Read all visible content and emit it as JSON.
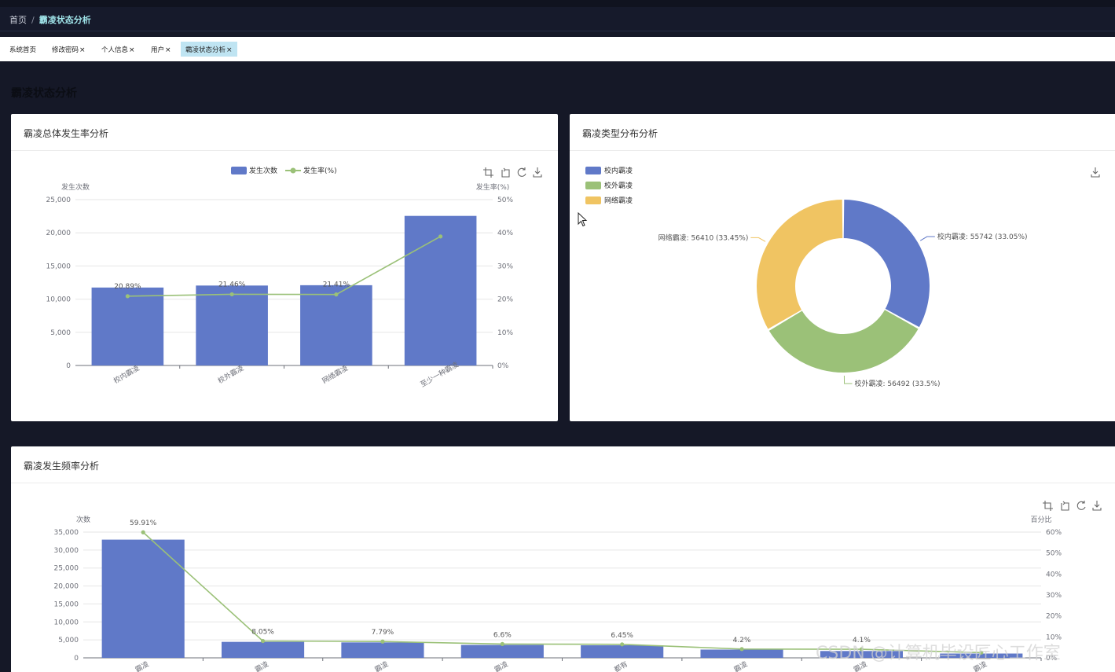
{
  "breadcrumb": {
    "home": "首页",
    "separator": "/",
    "current": "霸凌状态分析"
  },
  "tabs": [
    {
      "label": "系统首页",
      "closable": false,
      "active": false
    },
    {
      "label": "修改密码",
      "closable": true,
      "active": false
    },
    {
      "label": "个人信息",
      "closable": true,
      "active": false
    },
    {
      "label": "用户",
      "closable": true,
      "active": false
    },
    {
      "label": "霸凌状态分析",
      "closable": true,
      "active": true
    }
  ],
  "tab_close_glyph": "×",
  "page_title": "霸凌状态分析",
  "cards": {
    "rate": {
      "title": "霸凌总体发生率分析"
    },
    "type": {
      "title": "霸凌类型分布分析"
    },
    "freq": {
      "title": "霸凌发生频率分析"
    }
  },
  "toolbox_icons": [
    "crop-icon",
    "restore-icon",
    "refresh-icon",
    "download-icon"
  ],
  "colors": {
    "bar": "#6079c8",
    "line": "#9bc178",
    "pie": [
      "#6079c8",
      "#9bc178",
      "#f0c462"
    ],
    "page_bg": "#151827"
  },
  "chart_data": [
    {
      "type": "bar",
      "categories": [
        "校内霸凌",
        "校外霸凌",
        "网络霸凌",
        "至少一种霸凌"
      ],
      "series": [
        {
          "name": "发生次数",
          "kind": "bar",
          "values": [
            11750,
            12050,
            12100,
            22550
          ]
        },
        {
          "name": "发生率(%)",
          "kind": "line",
          "values": [
            20.89,
            21.46,
            21.41,
            38.9
          ],
          "labels": [
            "20.89%",
            "21.46%",
            "21.41%",
            ""
          ]
        }
      ],
      "ylabel": "发生次数",
      "y2label": "发生率(%)",
      "ylim": [
        0,
        25000
      ],
      "yticks": [
        "0",
        "5,000",
        "10,000",
        "15,000",
        "20,000",
        "25,000"
      ],
      "y2lim": [
        0,
        50
      ],
      "y2ticks": [
        "0%",
        "10%",
        "20%",
        "30%",
        "40%",
        "50%"
      ],
      "legend": "top-center",
      "grid": true
    },
    {
      "type": "pie",
      "donut": true,
      "slices": [
        {
          "name": "校内霸凌",
          "value": 55742,
          "label": "校内霸凌: 55742 (33.05%)"
        },
        {
          "name": "校外霸凌",
          "value": 56492,
          "label": "校外霸凌: 56492 (33.5%)"
        },
        {
          "name": "网络霸凌",
          "value": 56410,
          "label": "网络霸凌: 56410 (33.45%)"
        }
      ],
      "legend": "top-left"
    },
    {
      "type": "bar",
      "categories": [
        "霸凌",
        "霸凌",
        "霸凌",
        "霸凌",
        "都有",
        "霸凌",
        "霸凌",
        "霸凌"
      ],
      "series": [
        {
          "kind": "bar",
          "values": [
            32900,
            4450,
            4300,
            3600,
            3500,
            2300,
            1900,
            1200
          ]
        },
        {
          "kind": "line",
          "values": [
            59.91,
            8.05,
            7.79,
            6.6,
            6.45,
            4.2,
            4.1,
            2.5
          ],
          "labels": [
            "59.91%",
            "8.05%",
            "7.79%",
            "6.6%",
            "6.45%",
            "4.2%",
            "4.1%",
            ""
          ]
        }
      ],
      "ylabel": "次数",
      "y2label": "百分比",
      "ylim": [
        0,
        35000
      ],
      "yticks": [
        "0",
        "5,000",
        "10,000",
        "15,000",
        "20,000",
        "25,000",
        "30,000",
        "35,000"
      ],
      "y2lim": [
        0,
        60
      ],
      "y2ticks": [
        "0%",
        "10%",
        "20%",
        "30%",
        "40%",
        "50%",
        "60%"
      ],
      "grid": true
    }
  ],
  "watermark": "CSDN @计算机毕设匠心工作室"
}
